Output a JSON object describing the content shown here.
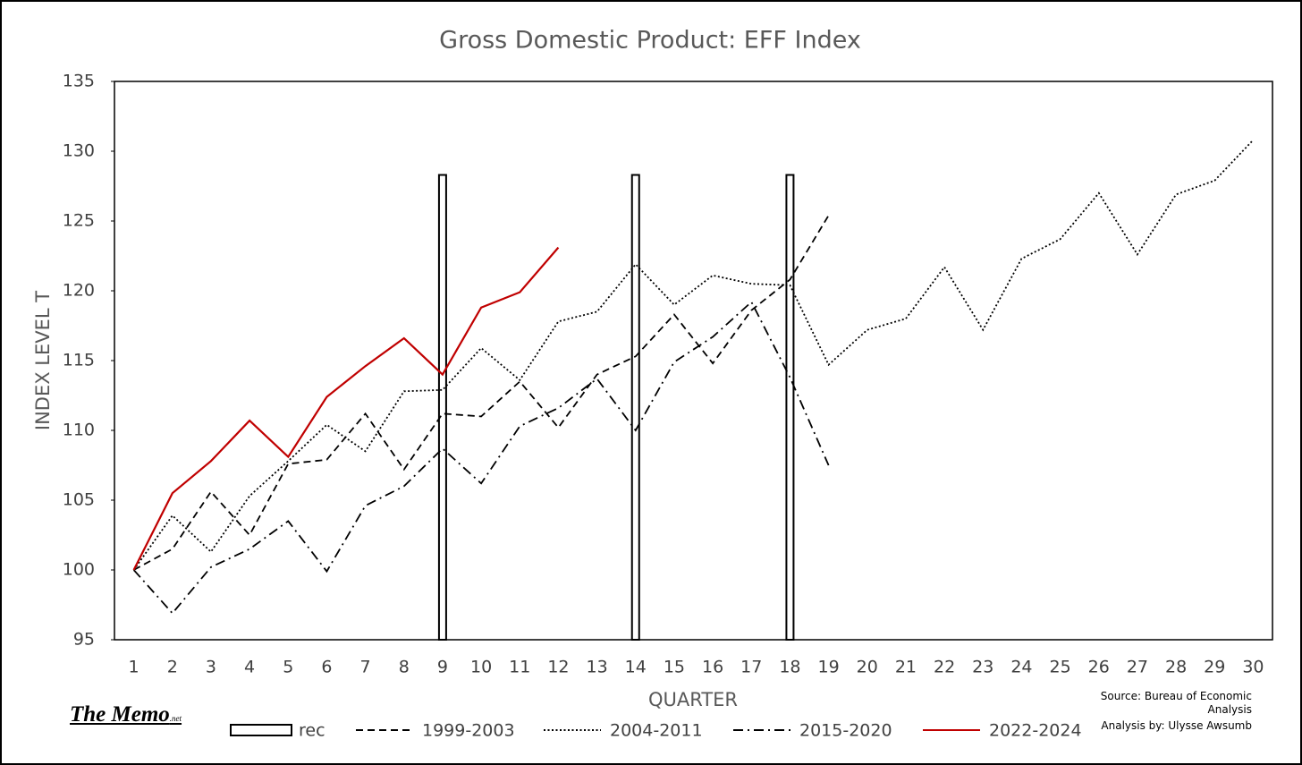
{
  "chart_data": {
    "type": "line",
    "title": "Gross Domestic Product: EFF Index",
    "x_label": "QUARTER",
    "y_label": "INDEX LEVEL T",
    "categories": [
      "1",
      "2",
      "3",
      "4",
      "5",
      "6",
      "7",
      "8",
      "9",
      "10",
      "11",
      "12",
      "13",
      "14",
      "15",
      "16",
      "17",
      "18",
      "19",
      "20",
      "21",
      "22",
      "23",
      "24",
      "25",
      "26",
      "27",
      "28",
      "29",
      "30"
    ],
    "ylim": [
      95,
      135
    ],
    "yticks": [
      95,
      100,
      105,
      110,
      115,
      120,
      125,
      130,
      135
    ],
    "grid": false,
    "legend": "bottom",
    "series": [
      {
        "name": "rec",
        "type": "bar",
        "color": "#000000",
        "values": [
          null,
          null,
          null,
          null,
          null,
          null,
          null,
          null,
          128.3,
          null,
          null,
          null,
          null,
          128.3,
          null,
          null,
          null,
          128.3,
          null,
          null,
          null,
          null,
          null,
          null,
          null,
          null,
          null,
          null,
          null,
          null
        ]
      },
      {
        "name": "1999-2003",
        "color": "#000000",
        "line_style": "dashed",
        "values": [
          100,
          101.5,
          105.6,
          102.5,
          107.6,
          107.9,
          111.2,
          107.2,
          111.2,
          111.0,
          113.5,
          110.2,
          114.0,
          115.3,
          118.3,
          114.8,
          118.6,
          120.8,
          125.4,
          null,
          null,
          null,
          null,
          null,
          null,
          null,
          null,
          null,
          null,
          null
        ]
      },
      {
        "name": "2004-2011",
        "color": "#000000",
        "line_style": "dotted",
        "values": [
          100,
          103.9,
          101.3,
          105.3,
          107.8,
          110.4,
          108.5,
          112.8,
          112.9,
          115.9,
          113.6,
          117.8,
          118.5,
          121.9,
          119.0,
          121.1,
          120.5,
          120.4,
          114.7,
          117.2,
          118.0,
          121.7,
          117.2,
          122.3,
          123.7,
          127.0,
          122.6,
          126.9,
          127.9,
          130.8
        ]
      },
      {
        "name": "2015-2020",
        "color": "#000000",
        "line_style": "dashdot",
        "values": [
          100,
          96.9,
          100.2,
          101.5,
          103.5,
          99.9,
          104.6,
          106.0,
          108.7,
          106.2,
          110.3,
          111.6,
          113.7,
          110.0,
          114.9,
          116.7,
          119.2,
          113.8,
          107.5,
          null,
          null,
          null,
          null,
          null,
          null,
          null,
          null,
          null,
          null,
          null
        ]
      },
      {
        "name": "2022-2024",
        "color": "#c00000",
        "line_style": "solid",
        "values": [
          100,
          105.5,
          107.8,
          110.7,
          108.1,
          112.4,
          114.6,
          116.6,
          114.0,
          118.8,
          119.9,
          123.1,
          null,
          null,
          null,
          null,
          null,
          null,
          null,
          null,
          null,
          null,
          null,
          null,
          null,
          null,
          null,
          null,
          null,
          null
        ]
      }
    ],
    "source": "Source: Bureau of Economic Analysis",
    "credit": "Analysis by: Ulysse Awsumb",
    "logo": "The Memo",
    "logo_suffix": ".net"
  }
}
